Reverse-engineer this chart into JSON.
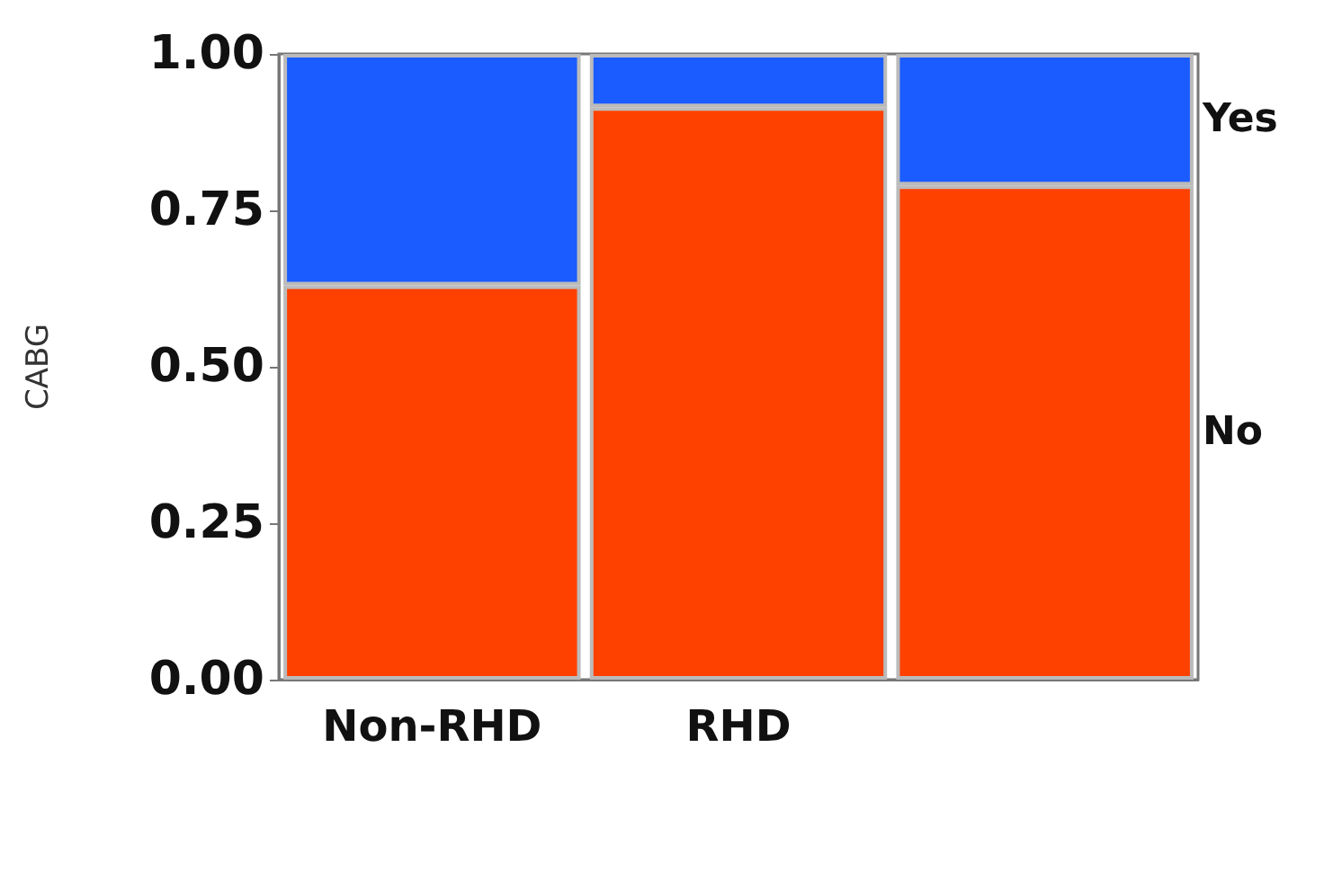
{
  "chart_data": {
    "type": "bar",
    "stacked": true,
    "ylabel": "CABG",
    "categories": [
      "Non-RHD",
      "RHD",
      null
    ],
    "series": [
      {
        "name": "No",
        "color": "#ff4100",
        "values": [
          0.63,
          0.915,
          0.79
        ]
      },
      {
        "name": "Yes",
        "color": "#1a5cff",
        "values": [
          0.37,
          0.085,
          0.21
        ]
      }
    ],
    "ylim": [
      0,
      1
    ],
    "yticks": [
      {
        "value": 0,
        "label": "0.00"
      },
      {
        "value": 0.25,
        "label": "0.25"
      },
      {
        "value": 0.5,
        "label": "0.50"
      },
      {
        "value": 0.75,
        "label": "0.75"
      },
      {
        "value": 1,
        "label": "1.00"
      }
    ],
    "grid": false,
    "legend": false
  }
}
